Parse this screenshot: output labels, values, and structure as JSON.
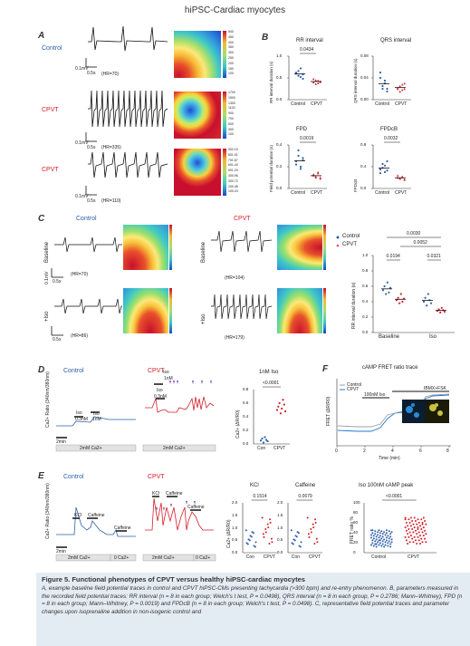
{
  "figure_title": "hiPSC-Cardiac myocytes",
  "panel_labels": {
    "A": "A",
    "B": "B",
    "C": "C",
    "D": "D",
    "E": "E",
    "F": "F"
  },
  "panelA": {
    "rows": [
      {
        "group": "Control",
        "hr": "(HR=70)",
        "scale_v": "0.1mV",
        "scale_t": "0.5s",
        "colorbar": [
          "500",
          "450",
          "400",
          "350",
          "300",
          "250",
          "200",
          "150",
          "100"
        ]
      },
      {
        "group": "CPVT",
        "hr": "(HR=335)",
        "scale_v": "0.1mV",
        "scale_t": "0.5s",
        "colorbar": [
          "1700",
          "1500",
          "1300",
          "1100",
          "900",
          "700",
          "500",
          "300",
          "100"
        ]
      },
      {
        "group": "CPVT",
        "hr": "(HR=110)",
        "scale_v": "0.1mV",
        "scale_t": "0.5s",
        "colorbar": [
          "902.15",
          "801.91",
          "701.67",
          "601.44",
          "501.20",
          "400.96",
          "300.72",
          "200.48",
          "100.24"
        ]
      }
    ]
  },
  "panelB": {
    "plots": [
      {
        "title": "RR interval",
        "ylabel": "RR interval duration (s)",
        "yticks": [
          "0.0",
          "0.5",
          "1.0"
        ],
        "pvalue": "0.0434",
        "categories": [
          "Control",
          "CPVT"
        ]
      },
      {
        "title": "QRS interval",
        "ylabel": "QRS interval duration (s)",
        "yticks": [
          "0.00",
          "0.04",
          "0.08"
        ],
        "pvalue": "",
        "categories": [
          "Control",
          "CPVT"
        ]
      },
      {
        "title": "FPD",
        "ylabel": "Field potential duration (s)",
        "yticks": [
          "0.0",
          "0.2",
          "0.4"
        ],
        "pvalue": "0.0019",
        "categories": [
          "Control",
          "CPVT"
        ]
      },
      {
        "title": "FPDcB",
        "ylabel": "FPDcB",
        "yticks": [
          "0.0",
          "0.4",
          "0.8"
        ],
        "pvalue": "0.0032",
        "categories": [
          "Control",
          "CPVT"
        ]
      }
    ]
  },
  "panelC": {
    "control_label": "Control",
    "cpvt_label": "CPVT",
    "row_labels": [
      "Baseline",
      "+Iso"
    ],
    "hr": [
      "(HR=70)",
      "(HR=104)",
      "(HR=86)",
      "(HR=179)"
    ],
    "scale_v": "0.1mV",
    "scale_t": "0.5s",
    "legend": [
      "Control",
      "CPVT"
    ],
    "plot": {
      "ylabel": "RR interval duration (s)",
      "yticks": [
        "0.0",
        "0.2",
        "0.4",
        "0.6",
        "0.8",
        "1.0"
      ],
      "categories": [
        "Baseline",
        "Iso"
      ],
      "pvalues": [
        "0.0030",
        "0.0052",
        "0.0194",
        "0.0321"
      ]
    }
  },
  "panelD": {
    "control_label": "Control",
    "cpvt_label": "CPVT",
    "ylabel": "Ca2+ Ratio (340nm/380nm)",
    "iso_labels": [
      "Iso",
      "0.3nM",
      "Iso",
      "1nM"
    ],
    "cpvt_iso": [
      "Iso",
      "1nM",
      "Iso",
      "0.3nM"
    ],
    "scale_t": "2min",
    "bar_label": "2mM Ca2+",
    "plot": {
      "title": "1nM Iso",
      "ylabel": "Ca2+ (ΔR/R0)",
      "yticks": [
        "0.0",
        "0.2",
        "0.4",
        "0.6",
        "0.8"
      ],
      "pvalue": "<0.0001",
      "categories": [
        "Con",
        "CPVT"
      ]
    }
  },
  "panelE": {
    "control_label": "Control",
    "cpvt_label": "CPVT",
    "ylabel": "Ca2+ Ratio (340nm/380nm)",
    "markers": [
      "KCl",
      "Caffeine",
      "Caffeine"
    ],
    "scale_t": "2min",
    "bars": [
      "2mM Ca2+",
      "0 Ca2+"
    ],
    "kcl": {
      "title": "KCl",
      "pvalue": "0.1514",
      "categories": [
        "Con",
        "CPVT"
      ]
    },
    "caffeine": {
      "title": "Caffeine",
      "pvalue": "0.0679",
      "categories": [
        "Con",
        "CPVT"
      ]
    },
    "ylabel_plot": "Ca2+ (ΔR/R0)",
    "yticks": [
      "0.0",
      "0.5",
      "1.0",
      "1.5",
      "2.0"
    ]
  },
  "panelF": {
    "title": "cAMP FRET ratio trace",
    "legend": [
      "Control",
      "CPVT"
    ],
    "ylabel": "FRET (ΔR/R0)",
    "xlabel": "Time (min)",
    "xticks": [
      "0",
      "2",
      "4",
      "6",
      "8"
    ],
    "annot": [
      "100nM Iso",
      "IBMX+FSK"
    ],
    "peak": {
      "title": "Iso 100nM cAMP peak",
      "ylabel": "FRET ratio %",
      "yticks": [
        "0",
        "20",
        "40",
        "60",
        "80",
        "100"
      ],
      "pvalue": "<0.0001",
      "categories": [
        "Control",
        "CPVT"
      ]
    }
  },
  "chart_data": [
    {
      "type": "scatter",
      "title": "RR interval",
      "categories": [
        "Control",
        "CPVT"
      ],
      "series": [
        {
          "name": "Control",
          "values": [
            0.62,
            0.55,
            0.72,
            0.48,
            0.6,
            0.66,
            0.52,
            0.58
          ]
        },
        {
          "name": "CPVT",
          "values": [
            0.4,
            0.45,
            0.38,
            0.42,
            0.48,
            0.36,
            0.44,
            0.41
          ]
        }
      ],
      "ylim": [
        0,
        1.0
      ]
    },
    {
      "type": "scatter",
      "title": "QRS interval",
      "categories": [
        "Control",
        "CPVT"
      ],
      "series": [
        {
          "name": "Control",
          "values": [
            0.04,
            0.02,
            0.03,
            0.015,
            0.05,
            0.025,
            0.035,
            0.02
          ]
        },
        {
          "name": "CPVT",
          "values": [
            0.02,
            0.025,
            0.018,
            0.03,
            0.022,
            0.015,
            0.028,
            0.02
          ]
        }
      ],
      "ylim": [
        0,
        0.08
      ]
    },
    {
      "type": "scatter",
      "title": "FPD",
      "categories": [
        "Control",
        "CPVT"
      ],
      "series": [
        {
          "name": "Control",
          "values": [
            0.25,
            0.3,
            0.2,
            0.28,
            0.22,
            0.35,
            0.18,
            0.26
          ]
        },
        {
          "name": "CPVT",
          "values": [
            0.12,
            0.1,
            0.14,
            0.09,
            0.13,
            0.11,
            0.15,
            0.1
          ]
        }
      ],
      "ylim": [
        0,
        0.4
      ]
    },
    {
      "type": "scatter",
      "title": "FPDcB",
      "categories": [
        "Control",
        "CPVT"
      ],
      "series": [
        {
          "name": "Control",
          "values": [
            0.35,
            0.45,
            0.3,
            0.5,
            0.28,
            0.38,
            0.42,
            0.33
          ]
        },
        {
          "name": "CPVT",
          "values": [
            0.2,
            0.18,
            0.22,
            0.16,
            0.24,
            0.19,
            0.21,
            0.17
          ]
        }
      ],
      "ylim": [
        0,
        0.8
      ]
    }
  ]
}
